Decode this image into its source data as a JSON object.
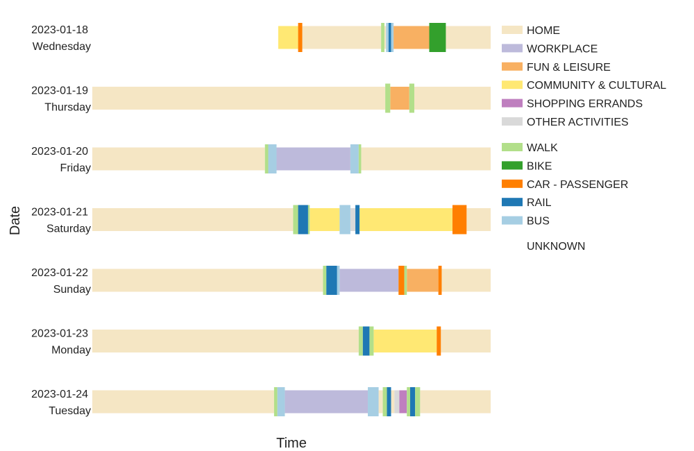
{
  "colors": {
    "HOME": "#f5e6c4",
    "WORKPLACE": "#bdbadb",
    "FUN & LEISURE": "#f8b062",
    "COMMUNITY & CULTURAL": "#ffe873",
    "SHOPPING ERRANDS": "#bf7fbf",
    "OTHER ACTIVITIES": "#d9d9d9",
    "WALK": "#b2df8a",
    "BIKE": "#33a02c",
    "CAR - PASSENGER": "#ff7f00",
    "RAIL": "#1f78b4",
    "BUS": "#a6cee3",
    "UNKNOWN": "#ffffff"
  },
  "chart_data": {
    "type": "timeline",
    "xlabel": "Time",
    "ylabel": "Date",
    "x_range_hours": [
      0,
      24
    ],
    "legend_position": "right",
    "legend": {
      "activities": [
        "HOME",
        "WORKPLACE",
        "FUN & LEISURE",
        "COMMUNITY & CULTURAL",
        "SHOPPING ERRANDS",
        "OTHER ACTIVITIES"
      ],
      "modes": [
        "WALK",
        "BIKE",
        "CAR - PASSENGER",
        "RAIL",
        "BUS"
      ],
      "unknown": [
        "UNKNOWN"
      ]
    },
    "rows": [
      {
        "date": "2023-01-18",
        "weekday": "Wednesday",
        "segments": [
          {
            "start": 11.2,
            "end": 12.4,
            "category": "COMMUNITY & CULTURAL"
          },
          {
            "start": 12.4,
            "end": 12.65,
            "category": "CAR - PASSENGER"
          },
          {
            "start": 12.65,
            "end": 17.4,
            "category": "HOME"
          },
          {
            "start": 17.4,
            "end": 17.6,
            "category": "WALK"
          },
          {
            "start": 17.6,
            "end": 17.7,
            "category": "HOME"
          },
          {
            "start": 17.7,
            "end": 17.85,
            "category": "BUS"
          },
          {
            "start": 17.85,
            "end": 18.0,
            "category": "RAIL"
          },
          {
            "start": 18.0,
            "end": 18.15,
            "category": "BUS"
          },
          {
            "start": 18.15,
            "end": 20.3,
            "category": "FUN & LEISURE"
          },
          {
            "start": 20.3,
            "end": 21.3,
            "category": "BIKE"
          },
          {
            "start": 21.3,
            "end": 24.0,
            "category": "HOME"
          }
        ]
      },
      {
        "date": "2023-01-19",
        "weekday": "Thursday",
        "segments": [
          {
            "start": 0,
            "end": 17.65,
            "category": "HOME"
          },
          {
            "start": 17.65,
            "end": 17.95,
            "category": "WALK"
          },
          {
            "start": 17.95,
            "end": 19.1,
            "category": "FUN & LEISURE"
          },
          {
            "start": 19.1,
            "end": 19.4,
            "category": "WALK"
          },
          {
            "start": 19.4,
            "end": 24.0,
            "category": "HOME"
          }
        ]
      },
      {
        "date": "2023-01-20",
        "weekday": "Friday",
        "segments": [
          {
            "start": 0,
            "end": 10.4,
            "category": "HOME"
          },
          {
            "start": 10.4,
            "end": 10.6,
            "category": "WALK"
          },
          {
            "start": 10.6,
            "end": 11.1,
            "category": "BUS"
          },
          {
            "start": 11.1,
            "end": 15.55,
            "category": "WORKPLACE"
          },
          {
            "start": 15.55,
            "end": 16.05,
            "category": "BUS"
          },
          {
            "start": 16.05,
            "end": 16.2,
            "category": "WALK"
          },
          {
            "start": 16.2,
            "end": 24.0,
            "category": "HOME"
          }
        ]
      },
      {
        "date": "2023-01-21",
        "weekday": "Saturday",
        "segments": [
          {
            "start": 0,
            "end": 12.1,
            "category": "HOME"
          },
          {
            "start": 12.1,
            "end": 12.4,
            "category": "WALK"
          },
          {
            "start": 12.4,
            "end": 13.0,
            "category": "RAIL"
          },
          {
            "start": 13.0,
            "end": 13.1,
            "category": "WALK"
          },
          {
            "start": 13.1,
            "end": 14.9,
            "category": "COMMUNITY & CULTURAL"
          },
          {
            "start": 14.9,
            "end": 15.55,
            "category": "BUS"
          },
          {
            "start": 15.55,
            "end": 15.85,
            "category": "OTHER ACTIVITIES"
          },
          {
            "start": 15.85,
            "end": 16.1,
            "category": "RAIL"
          },
          {
            "start": 16.1,
            "end": 21.7,
            "category": "COMMUNITY & CULTURAL"
          },
          {
            "start": 21.7,
            "end": 22.55,
            "category": "CAR - PASSENGER"
          },
          {
            "start": 22.55,
            "end": 24.0,
            "category": "HOME"
          }
        ]
      },
      {
        "date": "2023-01-22",
        "weekday": "Sunday",
        "segments": [
          {
            "start": 0,
            "end": 13.9,
            "category": "HOME"
          },
          {
            "start": 13.9,
            "end": 14.1,
            "category": "WALK"
          },
          {
            "start": 14.1,
            "end": 14.75,
            "category": "RAIL"
          },
          {
            "start": 14.75,
            "end": 14.9,
            "category": "BUS"
          },
          {
            "start": 14.9,
            "end": 18.45,
            "category": "WORKPLACE"
          },
          {
            "start": 18.45,
            "end": 18.8,
            "category": "CAR - PASSENGER"
          },
          {
            "start": 18.8,
            "end": 18.95,
            "category": "WALK"
          },
          {
            "start": 18.95,
            "end": 20.85,
            "category": "FUN & LEISURE"
          },
          {
            "start": 20.85,
            "end": 21.05,
            "category": "CAR - PASSENGER"
          },
          {
            "start": 21.05,
            "end": 24.0,
            "category": "HOME"
          }
        ]
      },
      {
        "date": "2023-01-23",
        "weekday": "Monday",
        "segments": [
          {
            "start": 0,
            "end": 16.05,
            "category": "HOME"
          },
          {
            "start": 16.05,
            "end": 16.3,
            "category": "WALK"
          },
          {
            "start": 16.3,
            "end": 16.7,
            "category": "RAIL"
          },
          {
            "start": 16.7,
            "end": 16.95,
            "category": "WALK"
          },
          {
            "start": 16.95,
            "end": 20.75,
            "category": "COMMUNITY & CULTURAL"
          },
          {
            "start": 20.75,
            "end": 21.0,
            "category": "CAR - PASSENGER"
          },
          {
            "start": 21.0,
            "end": 24.0,
            "category": "HOME"
          }
        ]
      },
      {
        "date": "2023-01-24",
        "weekday": "Tuesday",
        "segments": [
          {
            "start": 0,
            "end": 10.95,
            "category": "HOME"
          },
          {
            "start": 10.95,
            "end": 11.15,
            "category": "WALK"
          },
          {
            "start": 11.15,
            "end": 11.6,
            "category": "BUS"
          },
          {
            "start": 11.6,
            "end": 16.6,
            "category": "WORKPLACE"
          },
          {
            "start": 16.6,
            "end": 17.25,
            "category": "BUS"
          },
          {
            "start": 17.25,
            "end": 17.5,
            "category": "HOME"
          },
          {
            "start": 17.5,
            "end": 17.75,
            "category": "WALK"
          },
          {
            "start": 17.75,
            "end": 18.0,
            "category": "RAIL"
          },
          {
            "start": 18.0,
            "end": 18.2,
            "category": "HOME"
          },
          {
            "start": 18.2,
            "end": 18.5,
            "category": "OTHER ACTIVITIES"
          },
          {
            "start": 18.5,
            "end": 18.95,
            "category": "SHOPPING ERRANDS"
          },
          {
            "start": 18.95,
            "end": 19.15,
            "category": "WALK"
          },
          {
            "start": 19.15,
            "end": 19.45,
            "category": "RAIL"
          },
          {
            "start": 19.45,
            "end": 19.75,
            "category": "WALK"
          },
          {
            "start": 19.75,
            "end": 24.0,
            "category": "HOME"
          }
        ]
      }
    ]
  }
}
